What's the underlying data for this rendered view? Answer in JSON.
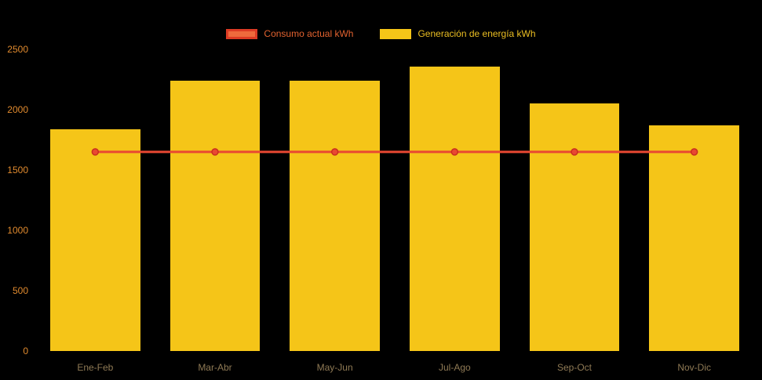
{
  "chart_data": {
    "type": "bar",
    "title": "",
    "xlabel": "",
    "ylabel": "",
    "categories": [
      "Ene-Feb",
      "Mar-Abr",
      "May-Jun",
      "Jul-Ago",
      "Sep-Oct",
      "Nov-Dic"
    ],
    "series": [
      {
        "name": "Consumo actual kWh",
        "type": "line",
        "color": "#E94832",
        "values": [
          1650,
          1650,
          1650,
          1650,
          1650,
          1650
        ]
      },
      {
        "name": "Generación de energía kWh",
        "type": "bar",
        "color": "#F5C518",
        "values": [
          1840,
          2240,
          2240,
          2360,
          2050,
          1870
        ]
      }
    ],
    "yticks": [
      0,
      500,
      1000,
      1500,
      2000,
      2500
    ],
    "ylim": [
      0,
      2500
    ],
    "legend_position": "top",
    "grid": false
  },
  "style": {
    "background": "#000000",
    "bar_color": "#F5C518",
    "line_color": "#E94832",
    "line_point_stroke": "#C8301E",
    "line_swatch_fill": "#EE6A3C",
    "line_swatch_border": "#DD3B24",
    "bar_swatch_fill": "#F5C518",
    "ytick_color": "#E08A2E",
    "xtick_color": "#8F7A55",
    "legend_line_text_color": "#E2622F",
    "legend_bar_text_color": "#EBBE22"
  }
}
